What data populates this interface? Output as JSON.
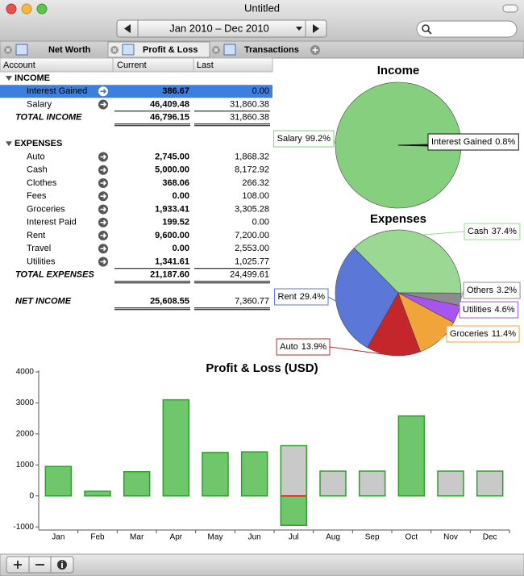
{
  "window": {
    "title": "Untitled",
    "date_range": "Jan 2010 – Dec 2010",
    "tabs": [
      "Net Worth",
      "Profit & Loss",
      "Transactions"
    ],
    "active_tab": 1
  },
  "table": {
    "columns": [
      "Account",
      "Current",
      "Last"
    ],
    "sections": [
      {
        "title": "INCOME",
        "rows": [
          [
            "Interest Gained",
            "386.67",
            "0.00"
          ],
          [
            "Salary",
            "46,409.48",
            "31,860.38"
          ]
        ],
        "total": [
          "TOTAL INCOME",
          "46,796.15",
          "31,860.38"
        ]
      },
      {
        "title": "EXPENSES",
        "rows": [
          [
            "Auto",
            "2,745.00",
            "1,868.32"
          ],
          [
            "Cash",
            "5,000.00",
            "8,172.92"
          ],
          [
            "Clothes",
            "368.06",
            "266.32"
          ],
          [
            "Fees",
            "0.00",
            "108.00"
          ],
          [
            "Groceries",
            "1,933.41",
            "3,305.28"
          ],
          [
            "Interest Paid",
            "199.52",
            "0.00"
          ],
          [
            "Rent",
            "9,600.00",
            "7,200.00"
          ],
          [
            "Travel",
            "0.00",
            "2,553.00"
          ],
          [
            "Utilities",
            "1,341.61",
            "1,025.77"
          ]
        ],
        "total": [
          "TOTAL EXPENSES",
          "21,187.60",
          "24,499.61"
        ]
      }
    ],
    "net": [
      "NET INCOME",
      "25,608.55",
      "7,360.77"
    ]
  },
  "chart_data": [
    {
      "type": "pie",
      "title": "Income",
      "categories": [
        "Salary",
        "Interest Gained"
      ],
      "values": [
        99.2,
        0.8
      ],
      "value_labels": [
        "99.2%",
        "0.8%"
      ],
      "colors": [
        "#86cf7e",
        "#111111"
      ]
    },
    {
      "type": "pie",
      "title": "Expenses",
      "categories": [
        "Cash",
        "Others",
        "Utilities",
        "Groceries",
        "Auto",
        "Rent"
      ],
      "values": [
        37.4,
        3.2,
        4.6,
        11.4,
        13.9,
        29.4
      ],
      "value_labels": [
        "37.4%",
        "3.2%",
        "4.6%",
        "11.4%",
        "13.9%",
        "29.4%"
      ],
      "colors": [
        "#9bd894",
        "#8c8c8c",
        "#a755ef",
        "#f0a43a",
        "#c4262c",
        "#5b78d9"
      ]
    },
    {
      "type": "bar",
      "title": "Profit & Loss (USD)",
      "categories": [
        "Jan",
        "Feb",
        "Mar",
        "Apr",
        "May",
        "Jun",
        "Jul",
        "Aug",
        "Sep",
        "Oct",
        "Nov",
        "Dec"
      ],
      "series": [
        {
          "color": "#6fc66b",
          "values": [
            950,
            150,
            780,
            3100,
            1400,
            1420,
            -950,
            null,
            null,
            2580,
            null,
            null
          ]
        },
        {
          "color": "#c9c9c9",
          "values": [
            null,
            null,
            null,
            null,
            null,
            null,
            1620,
            800,
            800,
            null,
            800,
            800
          ]
        }
      ],
      "edge_color": "#2f9e2b",
      "ylim": [
        -1100,
        4000
      ],
      "yticks": [
        -1000,
        0,
        1000,
        2000,
        3000,
        4000
      ]
    }
  ]
}
